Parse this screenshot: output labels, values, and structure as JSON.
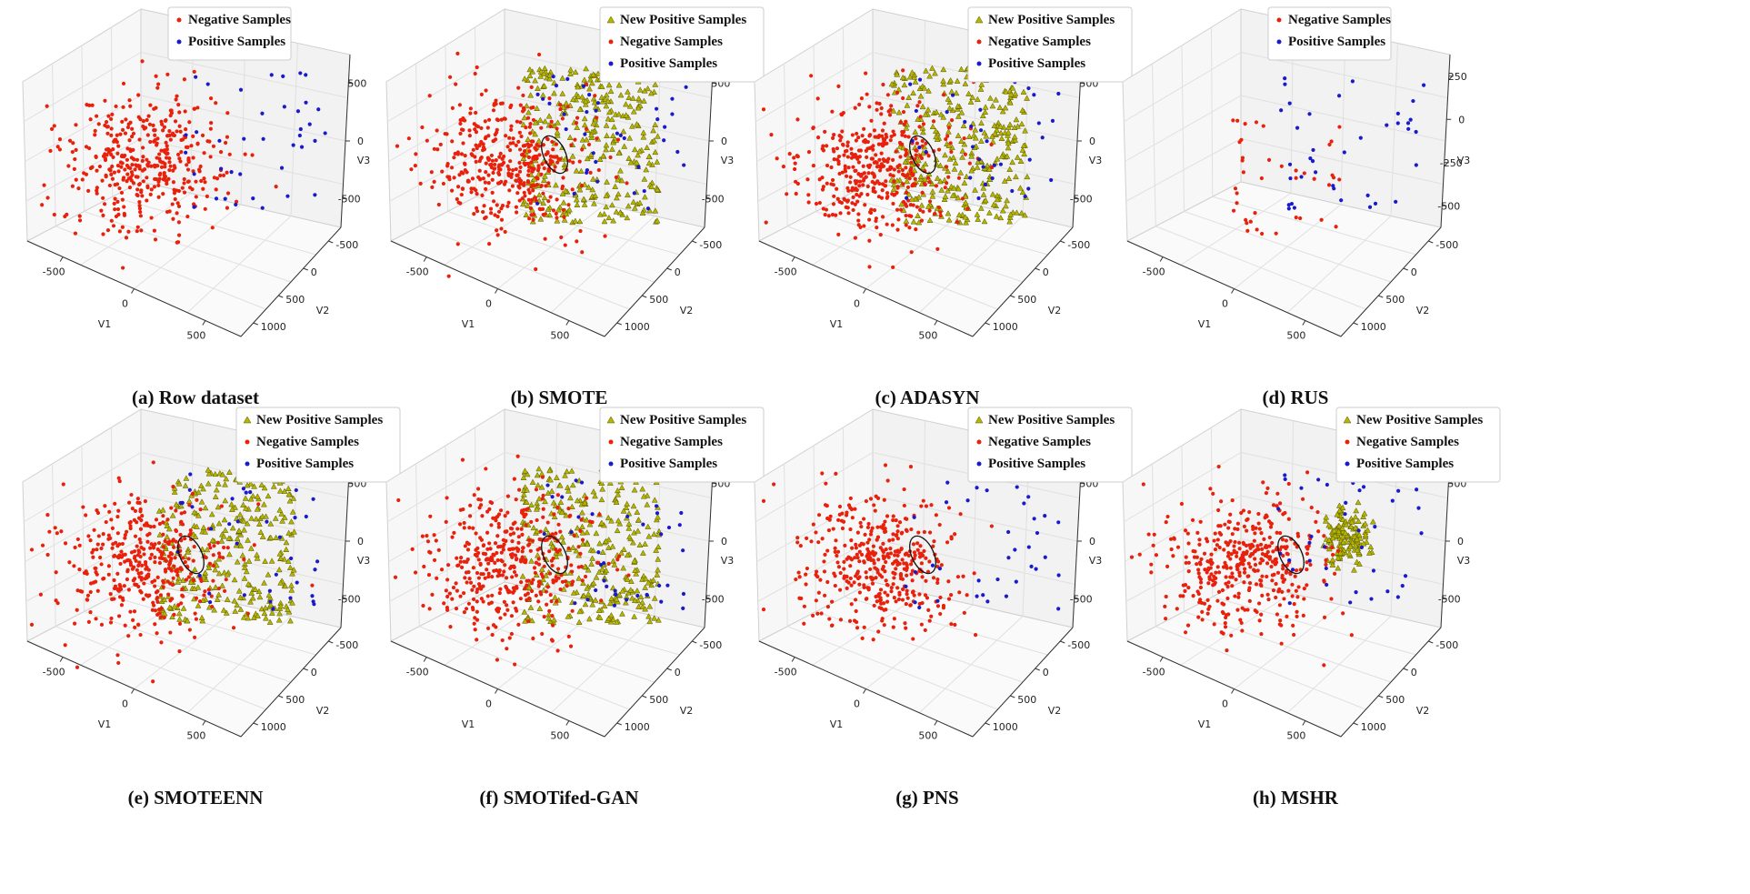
{
  "chart_data": [
    {
      "type": "scatter3d",
      "caption": "(a) Row dataset",
      "xlabel": "V1",
      "ylabel": "V2",
      "zlabel": "V3",
      "xticks": [
        -500,
        0,
        500
      ],
      "yticks": [
        -500,
        0,
        500,
        1000
      ],
      "zticks": [
        -500,
        0,
        500
      ],
      "legend": [
        "Negative Samples",
        "Positive Samples"
      ],
      "series": [
        {
          "name": "Negative Samples",
          "color": "#e8210c",
          "marker": "dot",
          "count": 420
        },
        {
          "name": "Positive Samples",
          "color": "#1a1acd",
          "marker": "dot",
          "count": 38
        }
      ],
      "highlight_ellipse": false,
      "synthetic_layout": "none"
    },
    {
      "type": "scatter3d",
      "caption": "(b) SMOTE",
      "xlabel": "V1",
      "ylabel": "V2",
      "zlabel": "V3",
      "xticks": [
        -500,
        0,
        500
      ],
      "yticks": [
        -500,
        0,
        500,
        1000
      ],
      "zticks": [
        -500,
        0,
        500
      ],
      "legend": [
        "New Positive Samples",
        "Negative Samples",
        "Positive Samples"
      ],
      "series": [
        {
          "name": "New Positive Samples",
          "color": "#b5b500",
          "marker": "triangle",
          "count": 340
        },
        {
          "name": "Negative Samples",
          "color": "#e8210c",
          "marker": "dot",
          "count": 420
        },
        {
          "name": "Positive Samples",
          "color": "#1a1acd",
          "marker": "dot",
          "count": 38
        }
      ],
      "highlight_ellipse": true,
      "synthetic_layout": "spread"
    },
    {
      "type": "scatter3d",
      "caption": "(c) ADASYN",
      "xlabel": "V1",
      "ylabel": "V2",
      "zlabel": "V3",
      "xticks": [
        -500,
        0,
        500
      ],
      "yticks": [
        -500,
        0,
        500,
        1000
      ],
      "zticks": [
        -500,
        0,
        500
      ],
      "legend": [
        "New Positive Samples",
        "Negative Samples",
        "Positive Samples"
      ],
      "series": [
        {
          "name": "New Positive Samples",
          "color": "#b5b500",
          "marker": "triangle",
          "count": 340
        },
        {
          "name": "Negative Samples",
          "color": "#e8210c",
          "marker": "dot",
          "count": 420
        },
        {
          "name": "Positive Samples",
          "color": "#1a1acd",
          "marker": "dot",
          "count": 38
        }
      ],
      "highlight_ellipse": true,
      "synthetic_layout": "spread"
    },
    {
      "type": "scatter3d",
      "caption": "(d) RUS",
      "xlabel": "V1",
      "ylabel": "V2",
      "zlabel": "V3",
      "xticks": [
        -500,
        0,
        500
      ],
      "yticks": [
        -500,
        0,
        500,
        1000
      ],
      "zticks": [
        -500,
        -250,
        0,
        250
      ],
      "legend": [
        "Negative Samples",
        "Positive Samples"
      ],
      "series": [
        {
          "name": "Negative Samples",
          "color": "#e8210c",
          "marker": "dot",
          "count": 40
        },
        {
          "name": "Positive Samples",
          "color": "#1a1acd",
          "marker": "dot",
          "count": 38
        }
      ],
      "highlight_ellipse": false,
      "synthetic_layout": "none"
    },
    {
      "type": "scatter3d",
      "caption": "(e) SMOTEENN",
      "xlabel": "V1",
      "ylabel": "V2",
      "zlabel": "V3",
      "xticks": [
        -500,
        0,
        500
      ],
      "yticks": [
        -500,
        0,
        500,
        1000
      ],
      "zticks": [
        -500,
        0,
        500
      ],
      "legend": [
        "New Positive Samples",
        "Negative Samples",
        "Positive Samples"
      ],
      "series": [
        {
          "name": "New Positive Samples",
          "color": "#b5b500",
          "marker": "triangle",
          "count": 320
        },
        {
          "name": "Negative Samples",
          "color": "#e8210c",
          "marker": "dot",
          "count": 400
        },
        {
          "name": "Positive Samples",
          "color": "#1a1acd",
          "marker": "dot",
          "count": 38
        }
      ],
      "highlight_ellipse": true,
      "synthetic_layout": "spread"
    },
    {
      "type": "scatter3d",
      "caption": "(f) SMOTifed-GAN",
      "xlabel": "V1",
      "ylabel": "V2",
      "zlabel": "V3",
      "xticks": [
        -500,
        0,
        500
      ],
      "yticks": [
        -500,
        0,
        500,
        1000
      ],
      "zticks": [
        -500,
        0,
        500
      ],
      "legend": [
        "New Positive Samples",
        "Negative Samples",
        "Positive Samples"
      ],
      "series": [
        {
          "name": "New Positive Samples",
          "color": "#b5b500",
          "marker": "triangle",
          "count": 340
        },
        {
          "name": "Negative Samples",
          "color": "#e8210c",
          "marker": "dot",
          "count": 420
        },
        {
          "name": "Positive Samples",
          "color": "#1a1acd",
          "marker": "dot",
          "count": 38
        }
      ],
      "highlight_ellipse": true,
      "synthetic_layout": "spread"
    },
    {
      "type": "scatter3d",
      "caption": "(g) PNS",
      "xlabel": "V1",
      "ylabel": "V2",
      "zlabel": "V3",
      "xticks": [
        -500,
        0,
        500
      ],
      "yticks": [
        -500,
        0,
        500,
        1000
      ],
      "zticks": [
        -500,
        0,
        500
      ],
      "legend": [
        "New Positive Samples",
        "Negative Samples",
        "Positive Samples"
      ],
      "series": [
        {
          "name": "New Positive Samples",
          "color": "#b5b500",
          "marker": "triangle",
          "count": 0
        },
        {
          "name": "Negative Samples",
          "color": "#e8210c",
          "marker": "dot",
          "count": 420
        },
        {
          "name": "Positive Samples",
          "color": "#1a1acd",
          "marker": "dot",
          "count": 38
        }
      ],
      "highlight_ellipse": true,
      "synthetic_layout": "none"
    },
    {
      "type": "scatter3d",
      "caption": "(h) MSHR",
      "xlabel": "V1",
      "ylabel": "V2",
      "zlabel": "V3",
      "xticks": [
        -500,
        0,
        500
      ],
      "yticks": [
        -500,
        0,
        500,
        1000
      ],
      "zticks": [
        -500,
        0,
        500
      ],
      "legend": [
        "New Positive Samples",
        "Negative Samples",
        "Positive Samples"
      ],
      "series": [
        {
          "name": "New Positive Samples",
          "color": "#b5b500",
          "marker": "triangle",
          "count": 140
        },
        {
          "name": "Negative Samples",
          "color": "#e8210c",
          "marker": "dot",
          "count": 420
        },
        {
          "name": "Positive Samples",
          "color": "#1a1acd",
          "marker": "dot",
          "count": 38
        }
      ],
      "highlight_ellipse": true,
      "synthetic_layout": "tight"
    }
  ]
}
